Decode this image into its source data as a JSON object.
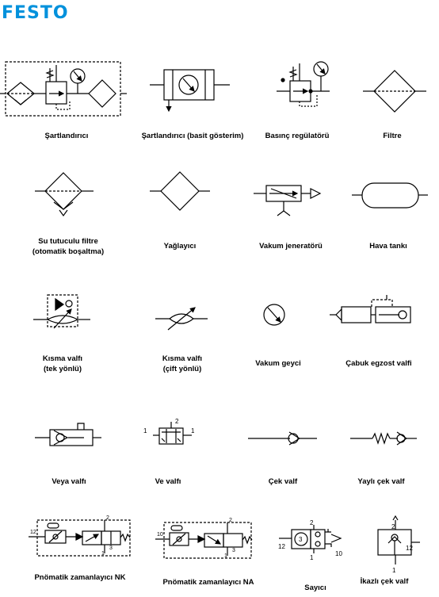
{
  "brand": {
    "logo_text": "FESTO",
    "color": "#0091dc"
  },
  "symbols": [
    {
      "id": "sartlandirici",
      "label": "Şartlandırıcı"
    },
    {
      "id": "sartlandirici-basit",
      "label": "Şartlandırıcı (basit gösterim)"
    },
    {
      "id": "basinc-regulatoru",
      "label": "Basınç regülatörü"
    },
    {
      "id": "filtre",
      "label": "Filtre"
    },
    {
      "id": "su-tutuculu-filtre",
      "label": "Su tutuculu filtre",
      "label2": "(otomatik boşaltma)"
    },
    {
      "id": "yaglayici",
      "label": "Yağlayıcı"
    },
    {
      "id": "vakum-jeneratoru",
      "label": "Vakum jeneratörü"
    },
    {
      "id": "hava-tanki",
      "label": "Hava tankı"
    },
    {
      "id": "kisma-valfi-tek",
      "label": "Kısma valfı",
      "label2": "(tek yönlü)"
    },
    {
      "id": "kisma-valfi-cift",
      "label": "Kısma valfı",
      "label2": "(çift yönlü)"
    },
    {
      "id": "vakum-geyci",
      "label": "Vakum geyci"
    },
    {
      "id": "cabuk-egzost",
      "label": "Çabuk egzost valfi"
    },
    {
      "id": "veya-valfi",
      "label": "Veya valfı"
    },
    {
      "id": "ve-valfi",
      "label": "Ve valfı",
      "ports": {
        "in_left": "1",
        "out": "2",
        "in_right": "1"
      }
    },
    {
      "id": "cek-valf",
      "label": "Çek valf"
    },
    {
      "id": "yayli-cek-valf",
      "label": "Yaylı çek valf"
    },
    {
      "id": "zamanlayici-nk",
      "label": "Pnömatik zamanlayıcı NK",
      "ports": {
        "p12": "12",
        "p2": "2",
        "p1": "1",
        "p3": "3"
      }
    },
    {
      "id": "zamanlayici-na",
      "label": "Pnömatik zamanlayıcı NA",
      "ports": {
        "p10": "10",
        "p2": "2",
        "p1": "1",
        "p3": "3"
      }
    },
    {
      "id": "sayici",
      "label": "Sayıcı",
      "ports": {
        "p2": "2",
        "p12": "12",
        "p10": "10",
        "p1": "1",
        "count": "3"
      }
    },
    {
      "id": "ikazli-cek-valf",
      "label": "İkazlı çek valf",
      "ports": {
        "p2": "2",
        "p12": "12",
        "p1": "1"
      }
    }
  ]
}
